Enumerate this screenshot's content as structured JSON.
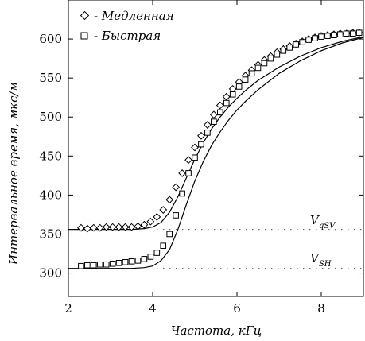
{
  "chart_data": {
    "type": "scatter",
    "xlabel": "Частота, кГц",
    "ylabel": "Интервальное время, мкс/м",
    "xlim": [
      2.0,
      9.0
    ],
    "ylim": [
      270,
      650
    ],
    "x_ticks": [
      2,
      4,
      6,
      8
    ],
    "y_ticks": [
      300,
      350,
      400,
      450,
      500,
      550,
      600
    ],
    "grid": false,
    "legend_position": "top-left",
    "series": [
      {
        "name": "- Медленная",
        "marker": "diamond",
        "x": [
          2.3,
          2.45,
          2.6,
          2.75,
          2.9,
          3.05,
          3.2,
          3.35,
          3.5,
          3.65,
          3.8,
          3.95,
          4.1,
          4.25,
          4.4,
          4.55,
          4.7,
          4.85,
          5.0,
          5.15,
          5.3,
          5.45,
          5.6,
          5.75,
          5.9,
          6.05,
          6.2,
          6.35,
          6.5,
          6.65,
          6.8,
          6.95,
          7.1,
          7.25,
          7.4,
          7.55,
          7.7,
          7.85,
          8.0,
          8.15,
          8.3,
          8.45,
          8.6,
          8.75,
          8.9
        ],
        "values": [
          358,
          357,
          358,
          358,
          359,
          359,
          359,
          359,
          359,
          360,
          362,
          366,
          372,
          381,
          394,
          410,
          428,
          445,
          461,
          476,
          490,
          503,
          515,
          526,
          536,
          545,
          553,
          560,
          567,
          573,
          578,
          583,
          587,
          591,
          594,
          597,
          600,
          602,
          604,
          605,
          606,
          607,
          607,
          608,
          608
        ]
      },
      {
        "name": "- Быстрая",
        "marker": "square",
        "x": [
          2.3,
          2.45,
          2.6,
          2.75,
          2.9,
          3.05,
          3.2,
          3.35,
          3.5,
          3.65,
          3.8,
          3.95,
          4.1,
          4.25,
          4.4,
          4.55,
          4.7,
          4.85,
          5.0,
          5.15,
          5.3,
          5.45,
          5.6,
          5.75,
          5.9,
          6.05,
          6.2,
          6.35,
          6.5,
          6.65,
          6.8,
          6.95,
          7.1,
          7.25,
          7.4,
          7.55,
          7.7,
          7.85,
          8.0,
          8.15,
          8.3,
          8.45,
          8.6,
          8.75,
          8.9
        ],
        "values": [
          309,
          310,
          310,
          311,
          311,
          312,
          313,
          314,
          315,
          316,
          318,
          321,
          326,
          335,
          350,
          374,
          402,
          428,
          448,
          465,
          480,
          494,
          506,
          518,
          529,
          539,
          548,
          556,
          563,
          569,
          575,
          580,
          585,
          589,
          593,
          596,
          599,
          601,
          603,
          604,
          605,
          606,
          607,
          607,
          608
        ]
      }
    ],
    "model_curves": [
      {
        "x": [
          2.0,
          2.5,
          3.0,
          3.5,
          3.8,
          4.0,
          4.2,
          4.4,
          4.6,
          4.8,
          5.0,
          5.2,
          5.4,
          5.6,
          5.8,
          6.0,
          6.2,
          6.5,
          7.0,
          7.5,
          8.0,
          8.5,
          9.0
        ],
        "values": [
          356,
          356,
          356,
          356,
          357,
          359,
          365,
          378,
          398,
          422,
          446,
          467,
          485,
          500,
          513,
          524,
          534,
          547,
          564,
          578,
          589,
          597,
          603
        ]
      },
      {
        "x": [
          2.0,
          2.5,
          3.0,
          3.5,
          3.8,
          4.0,
          4.2,
          4.4,
          4.6,
          4.8,
          5.0,
          5.2,
          5.4,
          5.6,
          5.8,
          6.0,
          6.2,
          6.5,
          7.0,
          7.5,
          8.0,
          8.5,
          9.0
        ],
        "values": [
          306,
          306,
          306,
          306,
          307,
          309,
          316,
          330,
          356,
          388,
          418,
          443,
          464,
          481,
          496,
          509,
          520,
          535,
          556,
          572,
          585,
          595,
          602
        ]
      }
    ],
    "reference_lines": [
      {
        "label_main": "V",
        "label_sub": "qSV",
        "y": 356
      },
      {
        "label_main": "V",
        "label_sub": "SH",
        "y": 306
      }
    ]
  }
}
